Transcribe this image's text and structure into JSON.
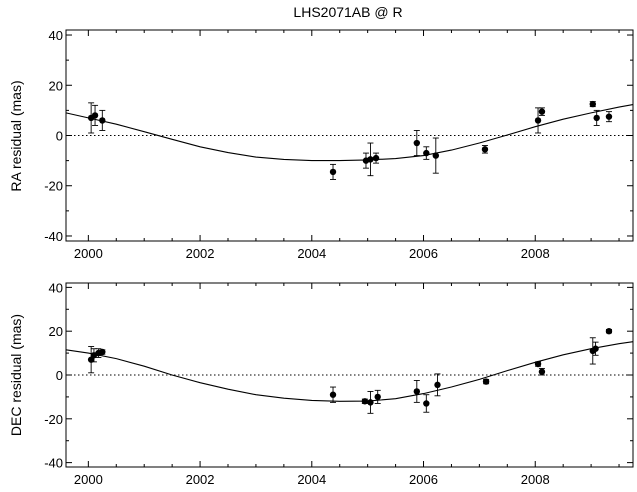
{
  "chart_data": {
    "type": "scatter",
    "title": "LHS2071AB @ R",
    "panels": [
      {
        "xlabel": "",
        "ylabel": "RA residual (mas)",
        "xlim": [
          1999.6,
          2009.75
        ],
        "ylim": [
          -42,
          42
        ],
        "xticks": [
          2000,
          2002,
          2004,
          2006,
          2008
        ],
        "xtick_labels": [
          "2000",
          "2002",
          "2004",
          "2006",
          "2008"
        ],
        "yticks": [
          -40,
          -20,
          0,
          20,
          40
        ],
        "ytick_labels": [
          "-40",
          "-20",
          "0",
          "20",
          "40"
        ],
        "zero_line": true,
        "series": [
          {
            "type": "errorbar",
            "x": [
              2000.05,
              2000.12,
              2000.25,
              2004.38,
              2004.97,
              2005.05,
              2005.15,
              2005.88,
              2006.05,
              2006.22,
              2007.1,
              2008.05,
              2008.12,
              2009.03,
              2009.1,
              2009.32
            ],
            "y": [
              7,
              8,
              6,
              -14.5,
              -10,
              -9.5,
              -9,
              -3,
              -7,
              -8,
              -5.5,
              6,
              9.5,
              12.5,
              7,
              7.5
            ],
            "err": [
              6,
              4,
              4,
              3,
              3,
              6.5,
              2,
              5,
              2.5,
              7,
              1.5,
              5,
              1.5,
              1,
              3,
              2
            ]
          },
          {
            "type": "line",
            "x": [
              1999.6,
              2000,
              2000.5,
              2001,
              2001.5,
              2002,
              2002.5,
              2003,
              2003.5,
              2004,
              2004.5,
              2005,
              2005.5,
              2006,
              2006.5,
              2007,
              2007.5,
              2008,
              2008.5,
              2009,
              2009.5,
              2009.75
            ],
            "y": [
              9,
              7,
              4.5,
              1.5,
              -1.5,
              -4.5,
              -6.8,
              -8.6,
              -9.5,
              -10,
              -10,
              -9.7,
              -9.2,
              -8,
              -5.8,
              -3,
              0.2,
              3.5,
              6.5,
              9,
              11.3,
              12.3
            ]
          }
        ]
      },
      {
        "xlabel": "",
        "ylabel": "DEC residual (mas)",
        "xlim": [
          1999.6,
          2009.75
        ],
        "ylim": [
          -42,
          42
        ],
        "xticks": [
          2000,
          2002,
          2004,
          2006,
          2008
        ],
        "xtick_labels": [
          "2000",
          "2002",
          "2004",
          "2006",
          "2008"
        ],
        "yticks": [
          -40,
          -20,
          0,
          20,
          40
        ],
        "ytick_labels": [
          "-40",
          "-20",
          "0",
          "20",
          "40"
        ],
        "zero_line": true,
        "series": [
          {
            "type": "errorbar",
            "x": [
              2000.05,
              2000.1,
              2000.18,
              2000.25,
              2004.38,
              2004.95,
              2005.05,
              2005.18,
              2005.88,
              2006.05,
              2006.25,
              2007.12,
              2008.05,
              2008.12,
              2009.03,
              2009.08,
              2009.32
            ],
            "y": [
              7,
              9,
              10,
              10.5,
              -9,
              -12,
              -12.5,
              -10,
              -7.5,
              -13,
              -4.5,
              -3,
              5,
              1.5,
              11,
              12,
              20
            ],
            "err": [
              6,
              3,
              2,
              1,
              3.5,
              1,
              5,
              3,
              5,
              4,
              5,
              1,
              1,
              1.5,
              6,
              3,
              0.8
            ]
          },
          {
            "type": "line",
            "x": [
              1999.6,
              2000,
              2000.5,
              2001,
              2001.5,
              2002,
              2002.5,
              2003,
              2003.5,
              2004,
              2004.5,
              2005,
              2005.5,
              2006,
              2006.5,
              2007,
              2007.5,
              2008,
              2008.5,
              2009,
              2009.5,
              2009.75
            ],
            "y": [
              11.5,
              10,
              7.5,
              4,
              0,
              -3.5,
              -6.5,
              -9,
              -10.6,
              -11.6,
              -12,
              -11.9,
              -10.8,
              -8.5,
              -5.5,
              -2,
              2,
              5.8,
              9.2,
              12,
              14.3,
              15.2
            ]
          }
        ]
      }
    ]
  }
}
